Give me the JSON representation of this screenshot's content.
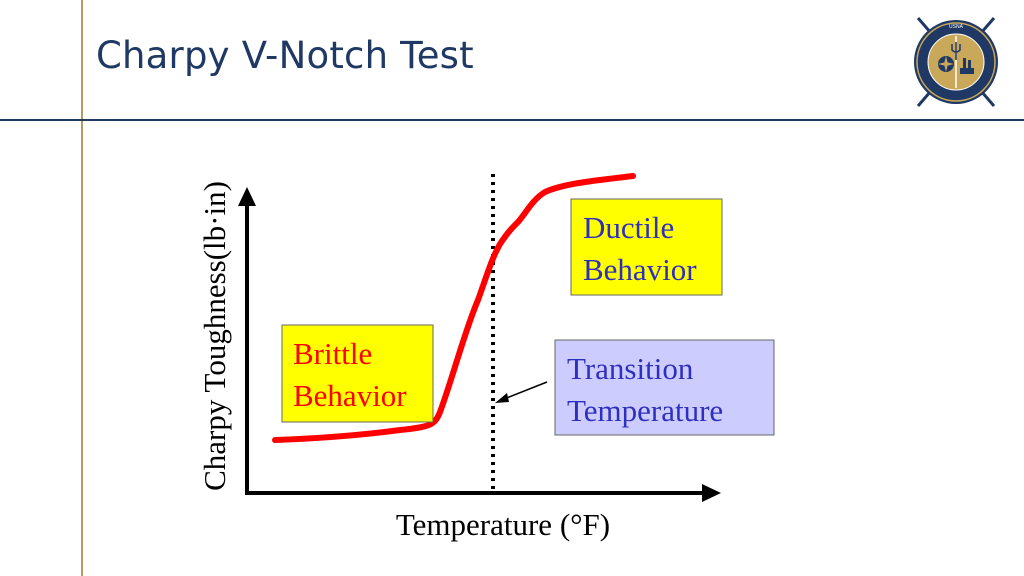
{
  "slide": {
    "title": "Charpy V-Notch Test"
  },
  "logo": {
    "ring_text": "UNITED STATES NAVAL ACADEMY · NAVAL ARCHITECTURE & OCEAN ENGINEERING",
    "colors": {
      "navy": "#1f3864",
      "gold": "#c9a85a"
    }
  },
  "diagram": {
    "y_axis_label": "Charpy Toughness(lb·in)",
    "x_axis_label": "Temperature (°F)",
    "boxes": {
      "brittle": {
        "line1": "Brittle",
        "line2": "Behavior",
        "text_color": "#ff0000",
        "fill": "#ffff00"
      },
      "ductile": {
        "line1": "Ductile",
        "line2": "Behavior",
        "text_color": "#2f2fbf",
        "fill": "#ffff00"
      },
      "transition": {
        "line1": "Transition",
        "line2": "Temperature",
        "text_color": "#2f2fbf",
        "fill": "#ccccff"
      }
    },
    "curve_color": "#ff0000"
  }
}
